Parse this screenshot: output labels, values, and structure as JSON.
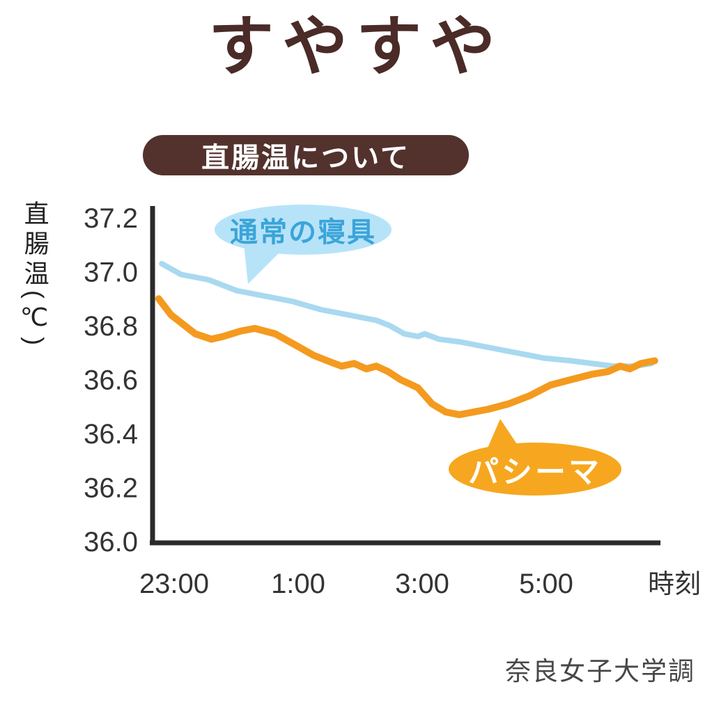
{
  "page": {
    "title": "すやすや",
    "source": "奈良女子大学調"
  },
  "chart_data": {
    "type": "line",
    "title": "直腸温について",
    "ylabel": "直腸温(℃)",
    "xlabel": "時刻",
    "ylim": [
      36.0,
      37.2
    ],
    "y_ticks": [
      "37.2",
      "37.0",
      "36.8",
      "36.6",
      "36.4",
      "36.2",
      "36.0"
    ],
    "x_ticks": [
      {
        "label": "23:00",
        "hour": 0
      },
      {
        "label": "1:00",
        "hour": 2
      },
      {
        "label": "3:00",
        "hour": 4
      },
      {
        "label": "5:00",
        "hour": 6
      }
    ],
    "x_unit": "hours since 23:00",
    "grid": false,
    "legend_position": "annotated-bubbles",
    "series": [
      {
        "name": "通常の寝具",
        "color": "#a9d9f0",
        "label_bg": "#b7e3f8",
        "label_color": "#3ba4d9",
        "x": [
          -0.2,
          0.11,
          0.56,
          1.01,
          1.46,
          1.91,
          2.36,
          2.81,
          3.26,
          3.48,
          3.71,
          3.93,
          4.04,
          4.27,
          4.61,
          5.06,
          5.51,
          5.96,
          6.4,
          6.74,
          7.08,
          7.42,
          7.7
        ],
        "values": [
          37.03,
          36.99,
          36.97,
          36.93,
          36.91,
          36.89,
          36.86,
          36.84,
          36.82,
          36.8,
          36.77,
          36.76,
          36.77,
          36.75,
          36.74,
          36.72,
          36.7,
          36.68,
          36.67,
          36.66,
          36.65,
          36.65,
          36.66
        ]
      },
      {
        "name": "パシーマ",
        "color": "#f49a1f",
        "label_bg": "#f6a71f",
        "label_color": "#ffffff",
        "x": [
          -0.25,
          -0.05,
          0.34,
          0.6,
          0.79,
          1.07,
          1.3,
          1.63,
          2.02,
          2.25,
          2.47,
          2.7,
          2.9,
          3.1,
          3.26,
          3.45,
          3.65,
          3.93,
          4.16,
          4.38,
          4.6,
          4.83,
          5.06,
          5.39,
          5.73,
          6.07,
          6.4,
          6.74,
          7.0,
          7.19,
          7.35,
          7.53,
          7.75
        ],
        "values": [
          36.9,
          36.84,
          36.77,
          36.75,
          36.76,
          36.78,
          36.79,
          36.77,
          36.72,
          36.69,
          36.67,
          36.65,
          36.66,
          36.64,
          36.65,
          36.63,
          36.6,
          36.57,
          36.51,
          36.48,
          36.47,
          36.48,
          36.49,
          36.51,
          36.54,
          36.58,
          36.6,
          36.62,
          36.63,
          36.65,
          36.64,
          36.66,
          36.67
        ]
      }
    ]
  }
}
